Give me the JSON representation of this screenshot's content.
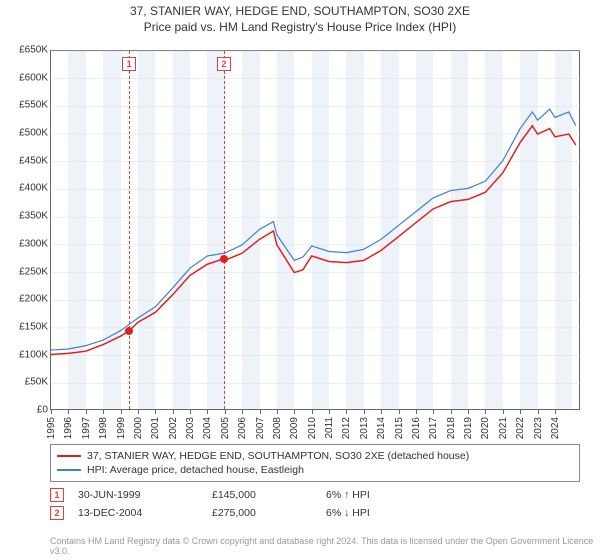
{
  "chart": {
    "type": "line",
    "title": "37, STANIER WAY, HEDGE END, SOUTHAMPTON, SO30 2XE",
    "subtitle": "Price paid vs. HM Land Registry's House Price Index (HPI)",
    "background_color": "#ffffff",
    "band_color": "#eef3f9",
    "grid_color": "#dddddd",
    "axis_color": "#666666",
    "title_fontsize": 12,
    "label_fontsize": 10,
    "y_axis": {
      "min": 0,
      "max": 650000,
      "step": 50000,
      "labels": [
        "£0",
        "£50K",
        "£100K",
        "£150K",
        "£200K",
        "£250K",
        "£300K",
        "£350K",
        "£400K",
        "£450K",
        "£500K",
        "£550K",
        "£600K",
        "£650K"
      ]
    },
    "x_axis": {
      "min": 1995,
      "max": 2025.5,
      "tick_step": 1,
      "labels": [
        "1995",
        "1996",
        "1997",
        "1998",
        "1999",
        "2000",
        "2001",
        "2002",
        "2003",
        "2004",
        "2005",
        "2006",
        "2007",
        "2008",
        "2009",
        "2010",
        "2011",
        "2012",
        "2013",
        "2014",
        "2015",
        "2016",
        "2017",
        "2018",
        "2019",
        "2020",
        "2021",
        "2022",
        "2023",
        "2024"
      ]
    },
    "series": [
      {
        "name": "37, STANIER WAY, HEDGE END, SOUTHAMPTON, SO30 2XE (detached house)",
        "color": "#e02020",
        "line_width": 1.5,
        "points": [
          [
            1995,
            102000
          ],
          [
            1996,
            104000
          ],
          [
            1997,
            108000
          ],
          [
            1998,
            120000
          ],
          [
            1999,
            135000
          ],
          [
            1999.5,
            145000
          ],
          [
            2000,
            160000
          ],
          [
            2001,
            178000
          ],
          [
            2002,
            210000
          ],
          [
            2003,
            245000
          ],
          [
            2004,
            265000
          ],
          [
            2004.95,
            275000
          ],
          [
            2005,
            272000
          ],
          [
            2006,
            285000
          ],
          [
            2007,
            310000
          ],
          [
            2007.8,
            325000
          ],
          [
            2008,
            300000
          ],
          [
            2009,
            250000
          ],
          [
            2009.5,
            255000
          ],
          [
            2010,
            280000
          ],
          [
            2011,
            270000
          ],
          [
            2012,
            268000
          ],
          [
            2013,
            272000
          ],
          [
            2014,
            290000
          ],
          [
            2015,
            315000
          ],
          [
            2016,
            340000
          ],
          [
            2017,
            365000
          ],
          [
            2018,
            378000
          ],
          [
            2019,
            382000
          ],
          [
            2020,
            395000
          ],
          [
            2021,
            430000
          ],
          [
            2022,
            485000
          ],
          [
            2022.7,
            515000
          ],
          [
            2023,
            500000
          ],
          [
            2023.7,
            510000
          ],
          [
            2024,
            495000
          ],
          [
            2024.8,
            500000
          ],
          [
            2025.2,
            480000
          ]
        ]
      },
      {
        "name": "HPI: Average price, detached house, Eastleigh",
        "color": "#4080d0",
        "line_width": 1.2,
        "points": [
          [
            1995,
            110000
          ],
          [
            1996,
            112000
          ],
          [
            1997,
            118000
          ],
          [
            1998,
            128000
          ],
          [
            1999,
            145000
          ],
          [
            2000,
            168000
          ],
          [
            2001,
            188000
          ],
          [
            2002,
            222000
          ],
          [
            2003,
            258000
          ],
          [
            2004,
            280000
          ],
          [
            2005,
            285000
          ],
          [
            2006,
            300000
          ],
          [
            2007,
            328000
          ],
          [
            2007.8,
            342000
          ],
          [
            2008,
            318000
          ],
          [
            2009,
            272000
          ],
          [
            2009.5,
            278000
          ],
          [
            2010,
            298000
          ],
          [
            2011,
            288000
          ],
          [
            2012,
            286000
          ],
          [
            2013,
            292000
          ],
          [
            2014,
            310000
          ],
          [
            2015,
            335000
          ],
          [
            2016,
            360000
          ],
          [
            2017,
            385000
          ],
          [
            2018,
            398000
          ],
          [
            2019,
            402000
          ],
          [
            2020,
            415000
          ],
          [
            2021,
            452000
          ],
          [
            2022,
            510000
          ],
          [
            2022.7,
            540000
          ],
          [
            2023,
            525000
          ],
          [
            2023.7,
            545000
          ],
          [
            2024,
            530000
          ],
          [
            2024.8,
            540000
          ],
          [
            2025.2,
            515000
          ]
        ]
      }
    ],
    "transactions": [
      {
        "n": "1",
        "date": "30-JUN-1999",
        "x": 1999.5,
        "price": "£145,000",
        "price_val": 145000,
        "delta": "6% ↑ HPI"
      },
      {
        "n": "2",
        "date": "13-DEC-2004",
        "x": 2004.95,
        "price": "£275,000",
        "price_val": 275000,
        "delta": "6% ↓ HPI"
      }
    ],
    "attribution": "Contains HM Land Registry data © Crown copyright and database right 2024.\nThis data is licensed under the Open Government Licence v3.0."
  },
  "legend_label_1": "37, STANIER WAY, HEDGE END, SOUTHAMPTON, SO30 2XE (detached house)",
  "legend_label_2": "HPI: Average price, detached house, Eastleigh"
}
